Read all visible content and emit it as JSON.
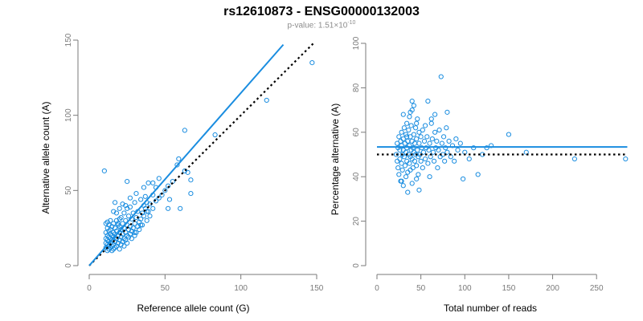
{
  "page": {
    "title": "rs12610873 - ENSG00000132003",
    "subtitle_prefix": "p-value: 1.51×10",
    "subtitle_exponent": "-10"
  },
  "colors": {
    "points": "#1a8de0",
    "fit_line": "#1a8de0",
    "reference_line": "#000000",
    "axis": "#7a7a7a"
  },
  "chart_data": [
    {
      "type": "scatter",
      "title": "",
      "xlabel": "Reference allele count (G)",
      "ylabel": "Alternative allele count (A)",
      "xlim": [
        0,
        150
      ],
      "ylim": [
        0,
        150
      ],
      "xticks": [
        0,
        50,
        100,
        150
      ],
      "yticks": [
        0,
        50,
        100,
        150
      ],
      "grid": false,
      "fit_line": {
        "x": [
          0,
          128
        ],
        "y": [
          0,
          147
        ]
      },
      "reference_line": {
        "x": [
          0,
          148
        ],
        "y": [
          0,
          148
        ]
      },
      "points": [
        [
          10,
          63
        ],
        [
          11,
          12
        ],
        [
          11,
          15
        ],
        [
          11,
          18
        ],
        [
          11,
          22
        ],
        [
          11,
          28
        ],
        [
          12,
          10
        ],
        [
          12,
          14
        ],
        [
          12,
          17
        ],
        [
          12,
          20
        ],
        [
          12,
          25
        ],
        [
          12,
          29
        ],
        [
          13,
          11
        ],
        [
          13,
          13
        ],
        [
          13,
          16
        ],
        [
          13,
          19
        ],
        [
          13,
          23
        ],
        [
          13,
          27
        ],
        [
          14,
          12
        ],
        [
          14,
          15
        ],
        [
          14,
          18
        ],
        [
          14,
          21
        ],
        [
          14,
          24
        ],
        [
          14,
          30
        ],
        [
          15,
          10
        ],
        [
          15,
          13
        ],
        [
          15,
          17
        ],
        [
          15,
          20
        ],
        [
          15,
          26
        ],
        [
          16,
          11
        ],
        [
          16,
          14
        ],
        [
          16,
          19
        ],
        [
          16,
          22
        ],
        [
          16,
          28
        ],
        [
          16,
          36
        ],
        [
          17,
          12
        ],
        [
          17,
          16
        ],
        [
          17,
          21
        ],
        [
          17,
          25
        ],
        [
          17,
          42
        ],
        [
          18,
          13
        ],
        [
          18,
          18
        ],
        [
          18,
          23
        ],
        [
          18,
          30
        ],
        [
          19,
          15
        ],
        [
          19,
          20
        ],
        [
          19,
          27
        ],
        [
          20,
          11
        ],
        [
          20,
          17
        ],
        [
          20,
          22
        ],
        [
          20,
          26
        ],
        [
          20,
          38
        ],
        [
          21,
          14
        ],
        [
          21,
          19
        ],
        [
          21,
          24
        ],
        [
          21,
          32
        ],
        [
          22,
          16
        ],
        [
          22,
          21
        ],
        [
          22,
          28
        ],
        [
          22,
          41
        ],
        [
          23,
          13
        ],
        [
          23,
          18
        ],
        [
          23,
          25
        ],
        [
          23,
          35
        ],
        [
          24,
          17
        ],
        [
          24,
          22
        ],
        [
          24,
          30
        ],
        [
          25,
          15
        ],
        [
          25,
          20
        ],
        [
          25,
          27
        ],
        [
          25,
          56
        ],
        [
          26,
          19
        ],
        [
          26,
          24
        ],
        [
          26,
          33
        ],
        [
          27,
          21
        ],
        [
          27,
          26
        ],
        [
          27,
          39
        ],
        [
          28,
          18
        ],
        [
          28,
          23
        ],
        [
          28,
          31
        ],
        [
          29,
          25
        ],
        [
          29,
          35
        ],
        [
          30,
          20
        ],
        [
          30,
          28
        ],
        [
          30,
          42
        ],
        [
          31,
          22
        ],
        [
          31,
          32
        ],
        [
          32,
          26
        ],
        [
          32,
          36
        ],
        [
          33,
          29
        ],
        [
          33,
          24
        ],
        [
          34,
          31
        ],
        [
          34,
          44
        ],
        [
          35,
          27
        ],
        [
          35,
          35
        ],
        [
          36,
          33
        ],
        [
          36,
          40
        ],
        [
          37,
          38
        ],
        [
          37,
          46
        ],
        [
          38,
          30
        ],
        [
          38,
          42
        ],
        [
          39,
          36
        ],
        [
          39,
          55
        ],
        [
          40,
          41
        ],
        [
          40,
          33
        ],
        [
          42,
          38
        ],
        [
          42,
          47
        ],
        [
          44,
          43
        ],
        [
          44,
          52
        ],
        [
          46,
          45
        ],
        [
          46,
          58
        ],
        [
          48,
          47
        ],
        [
          50,
          50
        ],
        [
          52,
          38
        ],
        [
          52,
          53
        ],
        [
          53,
          44
        ],
        [
          55,
          56
        ],
        [
          58,
          67
        ],
        [
          59,
          71
        ],
        [
          60,
          38
        ],
        [
          63,
          90
        ],
        [
          63,
          63
        ],
        [
          65,
          62
        ],
        [
          67,
          57
        ],
        [
          67,
          48
        ],
        [
          83,
          87
        ],
        [
          117,
          110
        ],
        [
          147,
          135
        ],
        [
          20,
          31
        ],
        [
          24,
          40
        ],
        [
          18,
          35
        ],
        [
          27,
          45
        ],
        [
          31,
          48
        ],
        [
          36,
          52
        ],
        [
          42,
          55
        ],
        [
          30,
          22
        ],
        [
          34,
          27
        ],
        [
          38,
          36
        ],
        [
          25,
          38
        ],
        [
          19,
          28
        ]
      ]
    },
    {
      "type": "scatter",
      "title": "",
      "xlabel": "Total number of reads",
      "ylabel": "Percentage alternative (A)",
      "xlim": [
        0,
        280
      ],
      "ylim": [
        0,
        100
      ],
      "xticks": [
        0,
        50,
        100,
        150,
        200,
        250
      ],
      "yticks": [
        0,
        20,
        40,
        60,
        80,
        100
      ],
      "grid": false,
      "fit_line": {
        "x": [
          0,
          285
        ],
        "y": [
          53.4,
          53.4
        ]
      },
      "reference_line": {
        "x": [
          0,
          285
        ],
        "y": [
          50,
          50
        ]
      },
      "points": [
        [
          22,
          50
        ],
        [
          23,
          55
        ],
        [
          23,
          47
        ],
        [
          24,
          44
        ],
        [
          24,
          53
        ],
        [
          25,
          58
        ],
        [
          25,
          41
        ],
        [
          26,
          52
        ],
        [
          26,
          48
        ],
        [
          27,
          56
        ],
        [
          27,
          38
        ],
        [
          28,
          46
        ],
        [
          28,
          54
        ],
        [
          28,
          60
        ],
        [
          29,
          50
        ],
        [
          29,
          43
        ],
        [
          30,
          57
        ],
        [
          30,
          52
        ],
        [
          31,
          49
        ],
        [
          31,
          62
        ],
        [
          32,
          45
        ],
        [
          32,
          55
        ],
        [
          33,
          51
        ],
        [
          33,
          59
        ],
        [
          34,
          47
        ],
        [
          34,
          53
        ],
        [
          34,
          64
        ],
        [
          35,
          42
        ],
        [
          35,
          56
        ],
        [
          36,
          50
        ],
        [
          36,
          61
        ],
        [
          37,
          46
        ],
        [
          37,
          54
        ],
        [
          37,
          67
        ],
        [
          38,
          49
        ],
        [
          38,
          58
        ],
        [
          38,
          43
        ],
        [
          39,
          52
        ],
        [
          39,
          63
        ],
        [
          40,
          48
        ],
        [
          40,
          56
        ],
        [
          40,
          70
        ],
        [
          41,
          44
        ],
        [
          41,
          53
        ],
        [
          42,
          51
        ],
        [
          42,
          59
        ],
        [
          42,
          72
        ],
        [
          43,
          47
        ],
        [
          43,
          55
        ],
        [
          44,
          50
        ],
        [
          44,
          62
        ],
        [
          45,
          45
        ],
        [
          45,
          57
        ],
        [
          46,
          52
        ],
        [
          46,
          66
        ],
        [
          47,
          49
        ],
        [
          47,
          41
        ],
        [
          48,
          55
        ],
        [
          48,
          60
        ],
        [
          49,
          50
        ],
        [
          50,
          47
        ],
        [
          50,
          58
        ],
        [
          51,
          53
        ],
        [
          52,
          44
        ],
        [
          52,
          61
        ],
        [
          53,
          51
        ],
        [
          54,
          56
        ],
        [
          55,
          48
        ],
        [
          55,
          63
        ],
        [
          56,
          53
        ],
        [
          57,
          58
        ],
        [
          58,
          46
        ],
        [
          59,
          52
        ],
        [
          60,
          55
        ],
        [
          61,
          49
        ],
        [
          62,
          64
        ],
        [
          63,
          57
        ],
        [
          64,
          51
        ],
        [
          65,
          47
        ],
        [
          66,
          60
        ],
        [
          67,
          53
        ],
        [
          68,
          56
        ],
        [
          69,
          44
        ],
        [
          70,
          52
        ],
        [
          71,
          61
        ],
        [
          72,
          49
        ],
        [
          73,
          85
        ],
        [
          74,
          55
        ],
        [
          75,
          50
        ],
        [
          76,
          58
        ],
        [
          77,
          47
        ],
        [
          78,
          53
        ],
        [
          79,
          62
        ],
        [
          80,
          51
        ],
        [
          82,
          56
        ],
        [
          84,
          49
        ],
        [
          86,
          54
        ],
        [
          88,
          47
        ],
        [
          90,
          57
        ],
        [
          92,
          52
        ],
        [
          95,
          55
        ],
        [
          98,
          39
        ],
        [
          100,
          51
        ],
        [
          105,
          48
        ],
        [
          110,
          53
        ],
        [
          115,
          41
        ],
        [
          120,
          50
        ],
        [
          125,
          53
        ],
        [
          130,
          54
        ],
        [
          150,
          59
        ],
        [
          170,
          51
        ],
        [
          225,
          48
        ],
        [
          283,
          48
        ],
        [
          30,
          36
        ],
        [
          35,
          33
        ],
        [
          40,
          37
        ],
        [
          45,
          39
        ],
        [
          28,
          38
        ],
        [
          33,
          40
        ],
        [
          48,
          34
        ],
        [
          30,
          68
        ],
        [
          40,
          74
        ],
        [
          45,
          64
        ],
        [
          58,
          74
        ],
        [
          62,
          66
        ],
        [
          66,
          68
        ],
        [
          80,
          69
        ],
        [
          60,
          40
        ],
        [
          38,
          69
        ],
        [
          34,
          58
        ]
      ]
    }
  ]
}
